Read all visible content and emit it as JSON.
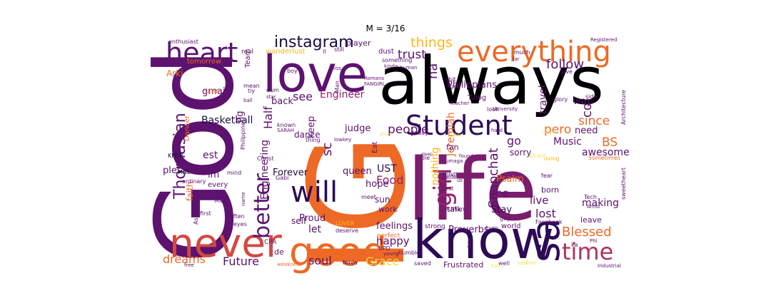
{
  "title": "M = 3/16",
  "palette": {
    "dark": "#1b0c41",
    "navy": "#2d0a55",
    "purple": "#5c126e",
    "plum": "#7a1d6d",
    "magenta": "#952168",
    "rose": "#b0315a",
    "red": "#d44842",
    "orange": "#ed6925",
    "amber": "#f98e09",
    "gold": "#fbb61a",
    "yellow": "#f6d746",
    "pale": "#f4e65d",
    "black": "#000004"
  },
  "words": [
    "IG",
    "always",
    "life",
    "God",
    "know",
    "love",
    "good",
    "never",
    "everything",
    "heart",
    "Student",
    "will",
    "time",
    "sa",
    "instagram",
    "girl",
    "better",
    "Thomasian",
    "things",
    "trust",
    "na",
    "follow",
    "Blessed",
    "pero",
    "since",
    "BS",
    "Snapchat",
    "people",
    "see",
    "Engineer",
    "UST",
    "Jeremiah",
    "nothing",
    "Philippians",
    "Basketball",
    "gmail",
    "Half",
    "keep",
    "judge",
    "Forever",
    "queen",
    "Food",
    "Psalm",
    "one",
    "Stay",
    "live",
    "lost",
    "making",
    "awesome",
    "Music",
    "sorry",
    "Future",
    "dreams",
    "soul",
    "Grace",
    "happy",
    "Proverbs",
    "feelings",
    "let",
    "hope",
    "sun",
    "work",
    "talk",
    "fan",
    "go",
    "travel",
    "way",
    "need",
    "co",
    "ng",
    "est",
    "faith",
    "Proud",
    "dance",
    "self",
    "im",
    "ples",
    "every",
    "back",
    "Engineering",
    "sc",
    "enthusiast",
    "wanderlust",
    "player",
    "dust",
    "real",
    "Arki",
    "tomorrow",
    "SERA",
    "Dancer",
    "Team",
    "mean",
    "boy",
    "Man",
    "Romans",
    "FANGIRL",
    "something",
    "shit",
    "got",
    "Tulog",
    "Teacher",
    "kinda",
    "Architecture",
    "side",
    "give",
    "glory",
    "University",
    "look",
    "hard",
    "simple",
    "coffee",
    "today",
    "known",
    "SARAH",
    "lowkey",
    "Eat",
    "thing",
    "KPOP",
    "big",
    "MNL",
    "mind",
    "Christ",
    "die",
    "Hindi",
    "belle",
    "us",
    "best",
    "fear",
    "Tech",
    "Artist",
    "sweetheart",
    "Sometimes",
    "living",
    "afraid",
    "found",
    "umaga",
    "sleep",
    "Main",
    "name",
    "first",
    "often",
    "Aspiring",
    "Gabi",
    "meet",
    "eyes",
    "LOVER",
    "deserve",
    "strong",
    "PUPian",
    "guy",
    "Facebook",
    "perfect",
    "CPA",
    "UPD",
    "young",
    "humble",
    "de",
    "Ninja",
    "weakness",
    "free",
    "saved",
    "Frustrated",
    "well",
    "sad",
    "Ose",
    "ka",
    "Industrial",
    "Phi",
    "dum",
    "star",
    "human",
    "miss",
    "still",
    "ll",
    "much",
    "far",
    "Registered",
    "ordinary",
    "Philippines",
    "plans",
    "world",
    "born",
    "Even",
    "fide",
    "leave",
    "ball",
    "Kayo",
    "tiy"
  ]
}
